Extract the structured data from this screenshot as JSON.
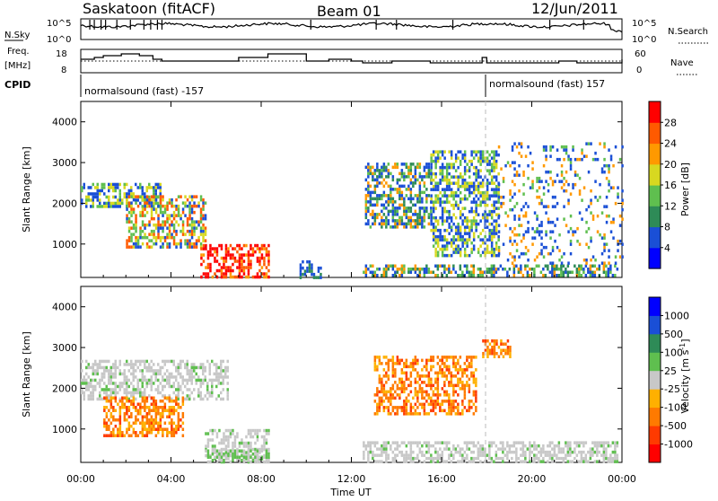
{
  "header": {
    "site": "Saskatoon (fitACF)",
    "beam": "Beam 01",
    "date": "12/Jun/2011"
  },
  "scan_panels": {
    "nsky_label": "N.Sky",
    "nsky_ticks": [
      "10^5",
      "10^0"
    ],
    "nsearch_label": "N.Search",
    "nsearch_ticks": [
      "10^5",
      "10^0"
    ],
    "freq_label_1": "Freq.",
    "freq_label_2": "[MHz]",
    "freq_ticks": [
      "18",
      "8"
    ],
    "nave_label": "Nave",
    "nave_ticks": [
      "60",
      "0"
    ],
    "cpid_label": "CPID",
    "cpid_1": "normalsound (fast) -157",
    "cpid_2": "normalsound (fast) 157"
  },
  "chart_data": [
    {
      "type": "heatmap",
      "quantity": "Power",
      "ylabel": "Slant Range [km]",
      "y_ticks": [
        "1000",
        "2000",
        "3000",
        "4000"
      ],
      "ylim": [
        180,
        4500
      ],
      "colorbar_label": "Power [dB]",
      "colorbar_ticks": [
        "4",
        "8",
        "12",
        "16",
        "20",
        "24",
        "28"
      ],
      "colors": [
        "#0000ff",
        "#1a4fd6",
        "#2e8b57",
        "#5fbf4f",
        "#d8d820",
        "#ff9900",
        "#ff5a00",
        "#ff0000"
      ],
      "echo_regions": [
        {
          "t_start": 0.0,
          "t_end": 3.5,
          "range_low": 1900,
          "range_high": 2500,
          "level": "low-mid"
        },
        {
          "t_start": 2.0,
          "t_end": 5.5,
          "range_low": 900,
          "range_high": 2200,
          "level": "high"
        },
        {
          "t_start": 5.3,
          "t_end": 8.3,
          "range_low": 200,
          "range_high": 1000,
          "level": "very-high"
        },
        {
          "t_start": 9.7,
          "t_end": 10.6,
          "range_low": 200,
          "range_high": 600,
          "level": "low"
        },
        {
          "t_start": 12.5,
          "t_end": 23.8,
          "range_low": 200,
          "range_high": 500,
          "level": "mid"
        },
        {
          "t_start": 12.6,
          "t_end": 15.5,
          "range_low": 1400,
          "range_high": 3000,
          "level": "mid"
        },
        {
          "t_start": 15.5,
          "t_end": 18.5,
          "range_low": 700,
          "range_high": 3300,
          "level": "low-mid"
        },
        {
          "t_start": 18.5,
          "t_end": 24.0,
          "range_low": 500,
          "range_high": 3500,
          "level": "sparse"
        }
      ]
    },
    {
      "type": "heatmap",
      "quantity": "Velocity",
      "ylabel": "Slant Range [km]",
      "y_ticks": [
        "1000",
        "2000",
        "3000",
        "4000"
      ],
      "ylim": [
        180,
        4500
      ],
      "xlabel": "Time UT",
      "x_ticks": [
        "00:00",
        "04:00",
        "08:00",
        "12:00",
        "16:00",
        "20:00",
        "00:00"
      ],
      "xlim": [
        0,
        24
      ],
      "colorbar_label": "Velocity [m s",
      "colorbar_label_exponent": "-1",
      "colorbar_label_close": "]",
      "colorbar_ticks": [
        "1000",
        "500",
        "100",
        "25",
        "-25",
        "-100",
        "-500",
        "-1000"
      ],
      "colors": [
        "#0000ff",
        "#1a4fd6",
        "#2e8b57",
        "#5fbf4f",
        "#c8c8c8",
        "#ffb000",
        "#ff7a00",
        "#ff3a00",
        "#ff0000"
      ],
      "echo_regions": [
        {
          "t_start": 0.0,
          "t_end": 6.5,
          "range_low": 1700,
          "range_high": 2700,
          "category": "ground-scatter"
        },
        {
          "t_start": 1.0,
          "t_end": 4.5,
          "range_low": 800,
          "range_high": 1800,
          "category": "negative"
        },
        {
          "t_start": 5.5,
          "t_end": 8.3,
          "range_low": 200,
          "range_high": 1000,
          "category": "ground-scatter"
        },
        {
          "t_start": 5.5,
          "t_end": 8.3,
          "range_low": 200,
          "range_high": 500,
          "category": "positive-low"
        },
        {
          "t_start": 12.5,
          "t_end": 23.8,
          "range_low": 200,
          "range_high": 700,
          "category": "ground-scatter"
        },
        {
          "t_start": 13.0,
          "t_end": 17.5,
          "range_low": 1400,
          "range_high": 2800,
          "category": "negative"
        },
        {
          "t_start": 17.8,
          "t_end": 19.0,
          "range_low": 2800,
          "range_high": 3200,
          "category": "negative"
        }
      ]
    }
  ]
}
